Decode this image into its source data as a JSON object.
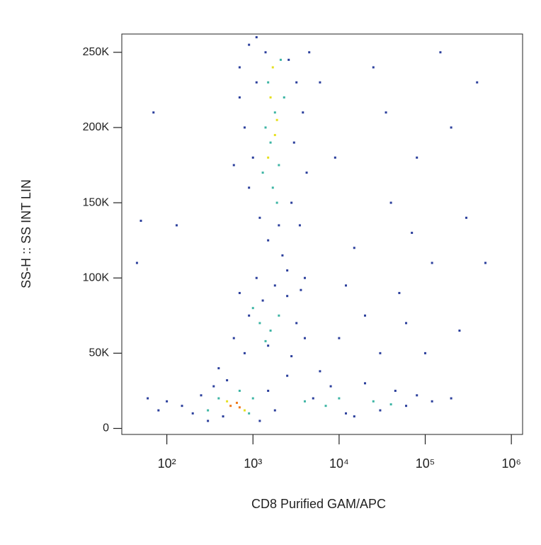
{
  "chart_data": {
    "type": "scatter",
    "x_label": "CD8 Purified GAM/APC",
    "y_label": "SS-H :: SS INT LIN",
    "xscale": "log",
    "xlim": [
      30,
      1350000
    ],
    "xticks": [
      {
        "value": 100,
        "label": "10²"
      },
      {
        "value": 1000,
        "label": "10³"
      },
      {
        "value": 10000,
        "label": "10⁴"
      },
      {
        "value": 100000,
        "label": "10⁵"
      },
      {
        "value": 1000000,
        "label": "10⁶"
      }
    ],
    "ylim": [
      -4000,
      262144
    ],
    "yticks": [
      0,
      {
        "value": 50000,
        "label": "50K"
      },
      {
        "value": 100000,
        "label": "100K"
      },
      {
        "value": 150000,
        "label": "150K"
      },
      {
        "value": 200000,
        "label": "200K"
      },
      {
        "value": 250000,
        "label": "250K"
      }
    ],
    "series": [
      {
        "color": "#2b3f9c",
        "x": [
          700,
          900,
          1100,
          1400,
          2600,
          3200,
          3800,
          800,
          1000,
          3000,
          4200,
          900,
          1200,
          2800,
          3500,
          1500,
          2200,
          700,
          4500,
          600,
          2000,
          1100,
          2500,
          1800,
          700,
          900,
          1300,
          2500,
          3200,
          4000,
          600,
          800,
          1500,
          2800,
          1100,
          3600,
          150,
          200,
          250,
          300,
          350,
          450,
          500,
          1200,
          1500,
          1800,
          100,
          80,
          2500,
          400,
          60,
          5000,
          8000,
          12000,
          20000,
          30000,
          45000,
          60000,
          80000,
          120000,
          200000,
          6000,
          15000,
          10000,
          20000,
          30000,
          50000,
          15000,
          40000,
          80000,
          120000,
          200000,
          6000,
          25000,
          60000,
          100000,
          300000,
          9000,
          35000,
          150000,
          70000,
          12000,
          250000,
          4000,
          500000,
          400000,
          45,
          50,
          70,
          130
        ],
        "values": [
          240000,
          255000,
          230000,
          250000,
          245000,
          230000,
          210000,
          200000,
          180000,
          190000,
          170000,
          160000,
          140000,
          150000,
          135000,
          125000,
          115000,
          220000,
          250000,
          175000,
          135000,
          260000,
          105000,
          95000,
          90000,
          75000,
          85000,
          88000,
          70000,
          60000,
          60000,
          50000,
          55000,
          48000,
          100000,
          92000,
          15000,
          10000,
          22000,
          5000,
          28000,
          8000,
          32000,
          5000,
          25000,
          12000,
          18000,
          12000,
          35000,
          40000,
          20000,
          20000,
          28000,
          10000,
          30000,
          12000,
          25000,
          15000,
          22000,
          18000,
          20000,
          38000,
          8000,
          60000,
          75000,
          50000,
          90000,
          120000,
          150000,
          180000,
          110000,
          200000,
          230000,
          240000,
          70000,
          50000,
          140000,
          180000,
          210000,
          250000,
          130000,
          95000,
          65000,
          100000,
          110000,
          230000,
          110000,
          138000,
          210000,
          135000
        ]
      },
      {
        "color": "#3db5a4",
        "x": [
          1500,
          1800,
          1600,
          2000,
          1700,
          1400,
          2100,
          1900,
          1300,
          2300,
          1200,
          1600,
          1000,
          2000,
          1400,
          400,
          700,
          1000,
          300,
          900,
          4000,
          7000,
          10000,
          25000,
          40000
        ],
        "values": [
          230000,
          210000,
          190000,
          175000,
          160000,
          200000,
          245000,
          150000,
          170000,
          220000,
          70000,
          65000,
          80000,
          75000,
          58000,
          20000,
          25000,
          20000,
          12000,
          10000,
          18000,
          15000,
          20000,
          18000,
          16000
        ]
      },
      {
        "color": "#e6e022",
        "x": [
          1600,
          1800,
          1700,
          1500,
          500,
          800,
          1900
        ],
        "values": [
          220000,
          195000,
          240000,
          180000,
          18000,
          12000,
          205000
        ]
      },
      {
        "color": "#f07a1c",
        "x": [
          550,
          650,
          700
        ],
        "values": [
          15000,
          17000,
          14000
        ]
      }
    ]
  }
}
